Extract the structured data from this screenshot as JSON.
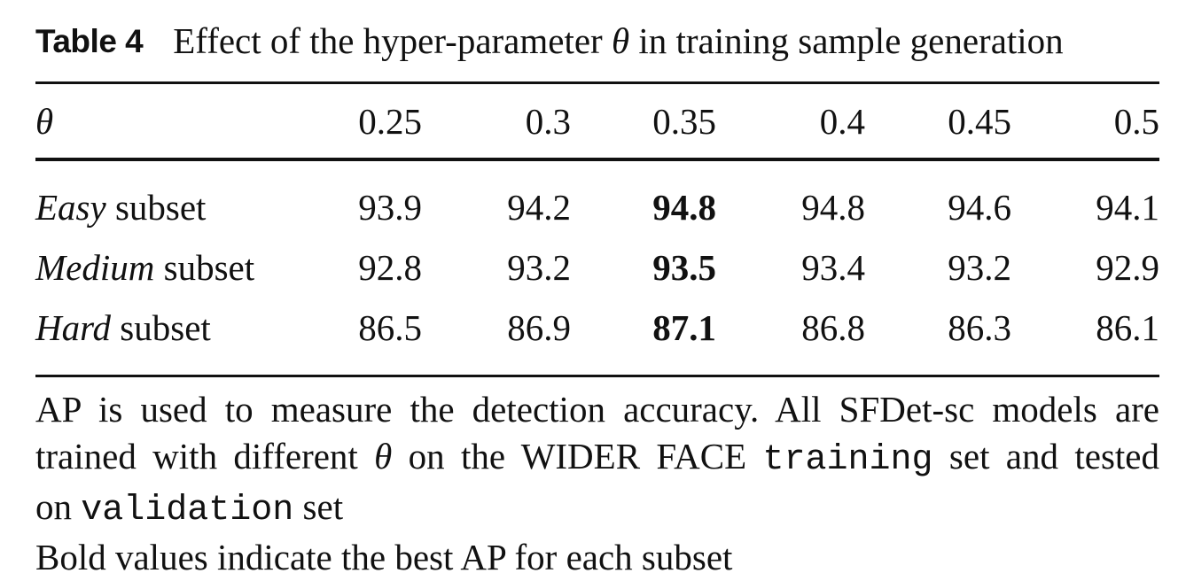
{
  "table": {
    "label": "Table 4",
    "caption_before_symbol": "Effect of the hyper-parameter ",
    "caption_symbol": "θ",
    "caption_after_symbol": " in training sample generation",
    "header": {
      "param_symbol": "θ",
      "columns": [
        "0.25",
        "0.3",
        "0.35",
        "0.4",
        "0.45",
        "0.5"
      ]
    },
    "rows": [
      {
        "label_italic": "Easy",
        "label_rest": " subset",
        "values": [
          "93.9",
          "94.2",
          "94.8",
          "94.8",
          "94.6",
          "94.1"
        ],
        "bold_index": 2
      },
      {
        "label_italic": "Medium",
        "label_rest": " subset",
        "values": [
          "92.8",
          "93.2",
          "93.5",
          "93.4",
          "93.2",
          "92.9"
        ],
        "bold_index": 2
      },
      {
        "label_italic": "Hard",
        "label_rest": " subset",
        "values": [
          "86.5",
          "86.9",
          "87.1",
          "86.8",
          "86.3",
          "86.1"
        ],
        "bold_index": 2
      }
    ],
    "footnote": {
      "line1": "AP is used to measure the detection accuracy. All SFDet-sc models are",
      "line2_a": "trained with different ",
      "line2_symbol": "θ",
      "line2_b": " on the WIDER FACE ",
      "line2_mono": "training",
      "line2_c": " set and tested",
      "line3_a": "on ",
      "line3_mono": "validation",
      "line3_b": " set",
      "line4": "Bold values indicate the best AP for each subset"
    }
  }
}
